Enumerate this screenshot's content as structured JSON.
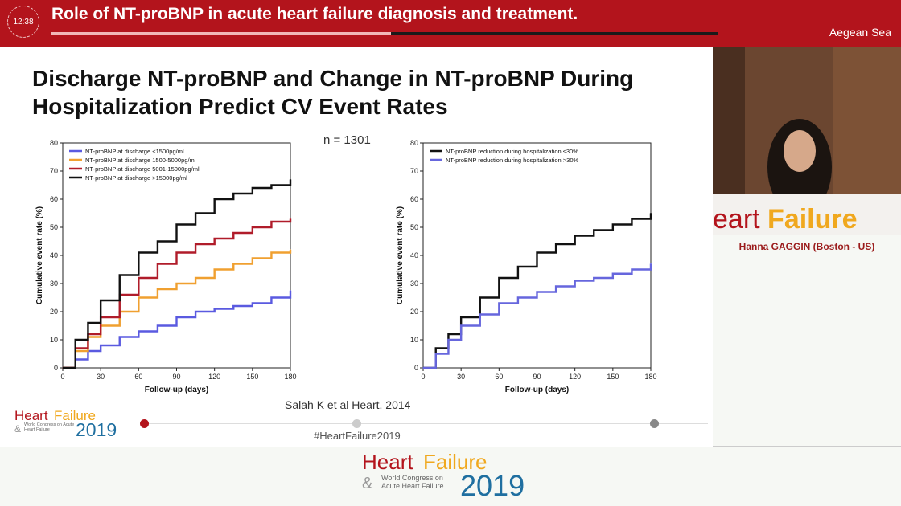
{
  "header": {
    "clock": "12:38",
    "title": "Role of NT-proBNP in acute heart failure diagnosis and treatment.",
    "room": "Aegean Sea",
    "progress": 0.51
  },
  "slide": {
    "title": "Discharge NT-proBNP and Change in NT-proBNP During Hospitalization Predict CV Event Rates",
    "n_label": "n = 1301",
    "citation": "Salah K et al Heart. 2014",
    "hashtag": "#HeartFailure2019",
    "logo": {
      "heart": "Heart",
      "failure": "Failure",
      "subtitle": "World Congress on Acute Heart Failure",
      "year": "2019"
    }
  },
  "speaker": {
    "name": "Hanna GAGGIN (Boston - US)",
    "banner": "eart Failure"
  },
  "footer_logo": {
    "heart": "Heart",
    "failure": "Failure",
    "subtitle_line1": "World Congress on",
    "subtitle_line2": "Acute Heart Failure",
    "year": "2019"
  },
  "chart_data": [
    {
      "type": "line",
      "xlabel": "Follow-up (days)",
      "ylabel": "Cumulative event rate (%)",
      "xlim": [
        0,
        180
      ],
      "ylim": [
        0,
        80
      ],
      "xticks": [
        0,
        30,
        60,
        90,
        120,
        150,
        180
      ],
      "yticks": [
        0,
        10,
        20,
        30,
        40,
        50,
        60,
        70,
        80
      ],
      "legend_position": "top-left",
      "series": [
        {
          "name": "NT-proBNP at discharge <1500pg/ml",
          "color": "#5a5ae0",
          "x": [
            0,
            10,
            20,
            30,
            45,
            60,
            75,
            90,
            105,
            120,
            135,
            150,
            165,
            180
          ],
          "y": [
            0,
            3,
            6,
            8,
            11,
            13,
            15,
            18,
            20,
            21,
            22,
            23,
            25,
            27.5
          ]
        },
        {
          "name": "NT-proBNP at discharge 1500-5000pg/ml",
          "color": "#f0a030",
          "x": [
            0,
            10,
            20,
            30,
            45,
            60,
            75,
            90,
            105,
            120,
            135,
            150,
            165,
            180
          ],
          "y": [
            0,
            6,
            11,
            15,
            20,
            25,
            28,
            30,
            32,
            35,
            37,
            39,
            41,
            42
          ]
        },
        {
          "name": "NT-proBNP at discharge 5001-15000pg/ml",
          "color": "#b01c2a",
          "x": [
            0,
            10,
            20,
            30,
            45,
            60,
            75,
            90,
            105,
            120,
            135,
            150,
            165,
            180
          ],
          "y": [
            0,
            7,
            12,
            18,
            26,
            32,
            37,
            41,
            44,
            46,
            48,
            50,
            52,
            53
          ]
        },
        {
          "name": "NT-proBNP at discharge >15000pg/ml",
          "color": "#111111",
          "x": [
            0,
            10,
            20,
            30,
            45,
            60,
            75,
            90,
            105,
            120,
            135,
            150,
            165,
            180
          ],
          "y": [
            0,
            10,
            16,
            24,
            33,
            41,
            45,
            51,
            55,
            60,
            62,
            64,
            65,
            67
          ]
        }
      ]
    },
    {
      "type": "line",
      "xlabel": "Follow-up (days)",
      "ylabel": "Cumulative event rate (%)",
      "xlim": [
        0,
        180
      ],
      "ylim": [
        0,
        80
      ],
      "xticks": [
        0,
        30,
        60,
        90,
        120,
        150,
        180
      ],
      "yticks": [
        0,
        10,
        20,
        30,
        40,
        50,
        60,
        70,
        80
      ],
      "legend_position": "top-left",
      "series": [
        {
          "name": "NT-proBNP reduction during hospitalization ≤30%",
          "color": "#111111",
          "x": [
            0,
            10,
            20,
            30,
            45,
            60,
            75,
            90,
            105,
            120,
            135,
            150,
            165,
            180
          ],
          "y": [
            0,
            7,
            12,
            18,
            25,
            32,
            36,
            41,
            44,
            47,
            49,
            51,
            53,
            55
          ]
        },
        {
          "name": "NT-proBNP reduction during hospitalization >30%",
          "color": "#6666dd",
          "x": [
            0,
            10,
            20,
            30,
            45,
            60,
            75,
            90,
            105,
            120,
            135,
            150,
            165,
            180
          ],
          "y": [
            0,
            5,
            10,
            15,
            19,
            23,
            25,
            27,
            29,
            31,
            32,
            33.5,
            35,
            37
          ]
        }
      ]
    }
  ]
}
